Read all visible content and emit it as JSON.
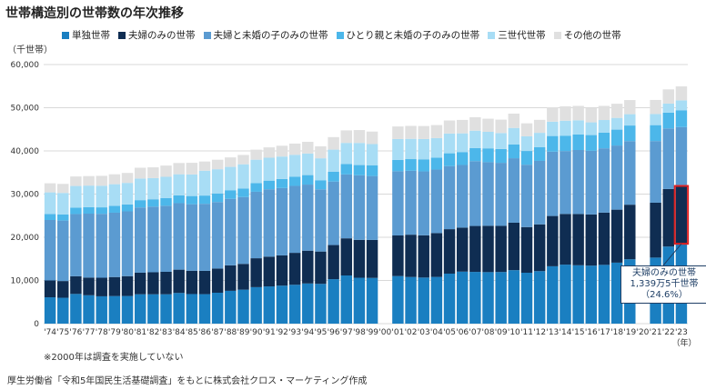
{
  "page": {
    "title": "世帯構造別の世帯数の年次推移",
    "unit": "（千世帯）",
    "note": "※2000年は調査を実施していない",
    "source": "厚生労働省「令和5年国民生活基礎調査」をもとに株式会社クロス・マーケティング作成",
    "callout": [
      "夫婦のみの世帯",
      "1,339万5千世帯",
      "（24.6%）"
    ]
  },
  "chart_data": {
    "type": "bar",
    "stacked": true,
    "title": "世帯構造別の世帯数の年次推移",
    "ylabel": "（千世帯）",
    "xlabel": "（年）",
    "ylim": [
      0,
      60000
    ],
    "yticks": [
      "0",
      "10,000",
      "20,000",
      "30,000",
      "40,000",
      "50,000",
      "60,000"
    ],
    "grid": true,
    "legend": "top",
    "categories": [
      "'74",
      "'75",
      "'76",
      "'77",
      "'78",
      "'79",
      "'80",
      "'81",
      "'82",
      "'83",
      "'84",
      "'85",
      "'86",
      "'87",
      "'88",
      "'89",
      "'90",
      "'91",
      "'92",
      "'93",
      "'94",
      "'95",
      "'96",
      "'97",
      "'98",
      "'99",
      "'00",
      "'01",
      "'02",
      "'03",
      "'04",
      "'05",
      "'06",
      "'07",
      "'08",
      "'09",
      "'10",
      "'11",
      "'12",
      "'13",
      "'14",
      "'15",
      "'16",
      "'17",
      "'18",
      "'19",
      "'20",
      "'21",
      "'22",
      "'23"
    ],
    "series": [
      {
        "name": "単独世帯",
        "color": "#1a7fc1",
        "values": [
          6100,
          5990,
          6880,
          6570,
          6330,
          6390,
          6400,
          6800,
          6800,
          6800,
          7100,
          6850,
          6826,
          7160,
          7600,
          7866,
          8446,
          8620,
          8800,
          9000,
          9300,
          9213,
          10300,
          11156,
          10627,
          10585,
          null,
          11017,
          10800,
          10673,
          10817,
          11580,
          12043,
          11983,
          11928,
          11955,
          12386,
          11787,
          12160,
          13285,
          13662,
          13517,
          13434,
          13613,
          14125,
          14907,
          null,
          15293,
          17852,
          18495
        ]
      },
      {
        "name": "夫婦のみの世帯",
        "color": "#0f2d52",
        "values": [
          3900,
          3880,
          4100,
          4100,
          4300,
          4400,
          4600,
          5000,
          5100,
          5200,
          5400,
          5400,
          5401,
          5600,
          5900,
          5975,
          6695,
          6900,
          7000,
          7400,
          7600,
          7488,
          7900,
          8600,
          8781,
          8800,
          null,
          9403,
          9800,
          9781,
          10161,
          10295,
          10198,
          10636,
          10730,
          10688,
          10994,
          10575,
          10829,
          11644,
          11748,
          11872,
          11850,
          12096,
          12270,
          12639,
          null,
          12714,
          13330,
          13395
        ]
      },
      {
        "name": "夫婦と未婚の子のみの世帯",
        "color": "#5b9bd1",
        "values": [
          14000,
          14000,
          14400,
          14800,
          14800,
          14900,
          15000,
          15100,
          15200,
          15300,
          15400,
          15400,
          15525,
          15400,
          15400,
          15478,
          15398,
          15600,
          15600,
          15500,
          15300,
          14398,
          14700,
          14800,
          14951,
          14800,
          null,
          14872,
          14800,
          14800,
          14700,
          14609,
          14500,
          15015,
          14732,
          14600,
          14922,
          14443,
          14700,
          14899,
          14546,
          14820,
          14744,
          14891,
          14851,
          14718,
          null,
          14272,
          14022,
          13635
        ]
      },
      {
        "name": "ひとり親と未婚の子のみの世帯",
        "color": "#4cb7ea",
        "values": [
          1400,
          1400,
          1500,
          1500,
          1500,
          1600,
          1600,
          1700,
          1700,
          1800,
          1800,
          1900,
          1908,
          2000,
          2000,
          1985,
          1998,
          2000,
          2100,
          2100,
          2200,
          2112,
          2300,
          2400,
          2364,
          2500,
          null,
          2618,
          2700,
          2800,
          2774,
          2968,
          3000,
          3006,
          3202,
          3200,
          3180,
          3180,
          3200,
          3621,
          3576,
          3624,
          3640,
          3645,
          3683,
          3616,
          null,
          3693,
          3666,
          3900
        ]
      },
      {
        "name": "三世代世帯",
        "color": "#a8ddf5",
        "values": [
          5000,
          5000,
          5000,
          5000,
          5000,
          5000,
          5000,
          5000,
          4900,
          4900,
          4900,
          5000,
          5757,
          5600,
          5400,
          5599,
          5428,
          5300,
          5200,
          5100,
          5000,
          5082,
          5100,
          4900,
          5125,
          4900,
          null,
          4844,
          4700,
          4700,
          4512,
          4575,
          4326,
          4045,
          3835,
          3700,
          3835,
          3400,
          3300,
          3329,
          3464,
          3264,
          2947,
          2910,
          2720,
          2627,
          null,
          2563,
          2086,
          2283
        ]
      },
      {
        "name": "その他の世帯",
        "color": "#e0e0e0",
        "values": [
          2100,
          2100,
          2200,
          2200,
          2300,
          2300,
          2300,
          2500,
          2500,
          2600,
          2600,
          2700,
          2127,
          2200,
          2200,
          2166,
          2320,
          2400,
          2500,
          2600,
          2700,
          2773,
          2900,
          2900,
          2981,
          2900,
          null,
          2909,
          3000,
          3000,
          3015,
          3021,
          3110,
          3114,
          3027,
          3100,
          3320,
          3000,
          3000,
          3334,
          3330,
          3330,
          3330,
          3270,
          3270,
          3270,
          null,
          3270,
          3290,
          3231
        ]
      }
    ]
  }
}
